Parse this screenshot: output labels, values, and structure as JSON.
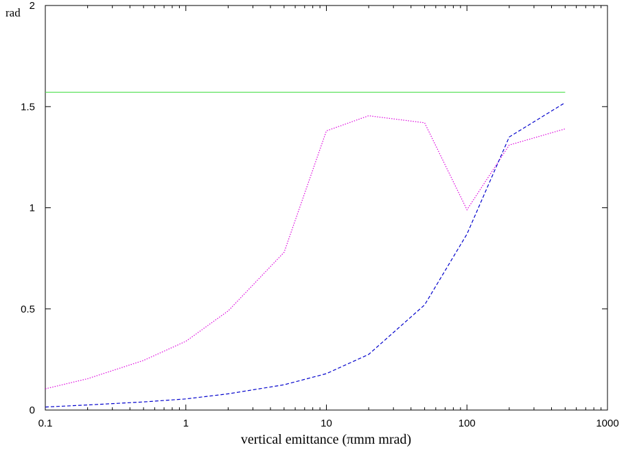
{
  "chart_data": {
    "type": "line",
    "xscale": "log",
    "xlim": [
      0.1,
      1000
    ],
    "ylim": [
      0,
      2
    ],
    "xticks": [
      0.1,
      1,
      10,
      100,
      1000
    ],
    "xtick_labels": [
      "0.1",
      "1",
      "10",
      "100",
      "1000"
    ],
    "yticks": [
      0,
      0.5,
      1,
      1.5,
      2
    ],
    "ytick_labels": [
      "0",
      "0.5",
      "1",
      "1.5",
      "2"
    ],
    "xlabel": "vertical emittance (πmm mrad)",
    "ylabel": "rad",
    "grid": false,
    "series": [
      {
        "style": "solid",
        "color": "#4ddf4d",
        "x": [
          0.1,
          500
        ],
        "y": [
          1.571,
          1.571
        ]
      },
      {
        "style": "dotted",
        "color": "#dd00dd",
        "x": [
          0.1,
          0.2,
          0.5,
          1,
          2,
          5,
          10,
          20,
          50,
          100,
          200,
          500
        ],
        "y": [
          0.105,
          0.155,
          0.245,
          0.34,
          0.49,
          0.78,
          1.38,
          1.455,
          1.42,
          0.99,
          1.31,
          1.39
        ]
      },
      {
        "style": "dashed",
        "color": "#0000cc",
        "x": [
          0.1,
          0.2,
          0.5,
          1,
          2,
          5,
          10,
          20,
          50,
          100,
          200,
          500
        ],
        "y": [
          0.015,
          0.025,
          0.04,
          0.055,
          0.08,
          0.125,
          0.18,
          0.275,
          0.52,
          0.87,
          1.35,
          1.52
        ]
      }
    ]
  }
}
